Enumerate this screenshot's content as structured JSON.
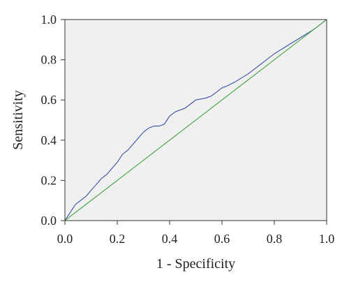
{
  "chart_data": {
    "type": "line",
    "xlabel": "1 - Specificity",
    "ylabel": "Sensitivity",
    "xlim": [
      0.0,
      1.0
    ],
    "ylim": [
      0.0,
      1.0
    ],
    "x_ticks": [
      "0.0",
      "0.2",
      "0.4",
      "0.6",
      "0.8",
      "1.0"
    ],
    "y_ticks": [
      "0.0",
      "0.2",
      "0.4",
      "0.6",
      "0.8",
      "1.0"
    ],
    "grid": false,
    "background_color": "#f0f0f0",
    "series": [
      {
        "color": "#3a4fa8",
        "x": [
          0.0,
          0.01,
          0.02,
          0.03,
          0.04,
          0.05,
          0.06,
          0.08,
          0.1,
          0.12,
          0.14,
          0.16,
          0.18,
          0.2,
          0.21,
          0.22,
          0.24,
          0.26,
          0.28,
          0.3,
          0.32,
          0.34,
          0.36,
          0.38,
          0.4,
          0.41,
          0.42,
          0.44,
          0.46,
          0.48,
          0.5,
          0.52,
          0.54,
          0.56,
          0.58,
          0.6,
          0.62,
          0.65,
          0.7,
          0.75,
          0.8,
          0.85,
          0.9,
          0.95,
          1.0
        ],
        "y": [
          0.0,
          0.02,
          0.04,
          0.06,
          0.08,
          0.09,
          0.1,
          0.12,
          0.15,
          0.18,
          0.21,
          0.23,
          0.26,
          0.29,
          0.31,
          0.33,
          0.35,
          0.38,
          0.41,
          0.44,
          0.46,
          0.47,
          0.47,
          0.48,
          0.52,
          0.53,
          0.54,
          0.55,
          0.56,
          0.58,
          0.6,
          0.605,
          0.61,
          0.62,
          0.64,
          0.66,
          0.67,
          0.69,
          0.73,
          0.78,
          0.83,
          0.87,
          0.91,
          0.95,
          1.0
        ]
      },
      {
        "color": "#3da23d",
        "x": [
          0.0,
          1.0
        ],
        "y": [
          0.0,
          1.0
        ]
      }
    ]
  }
}
